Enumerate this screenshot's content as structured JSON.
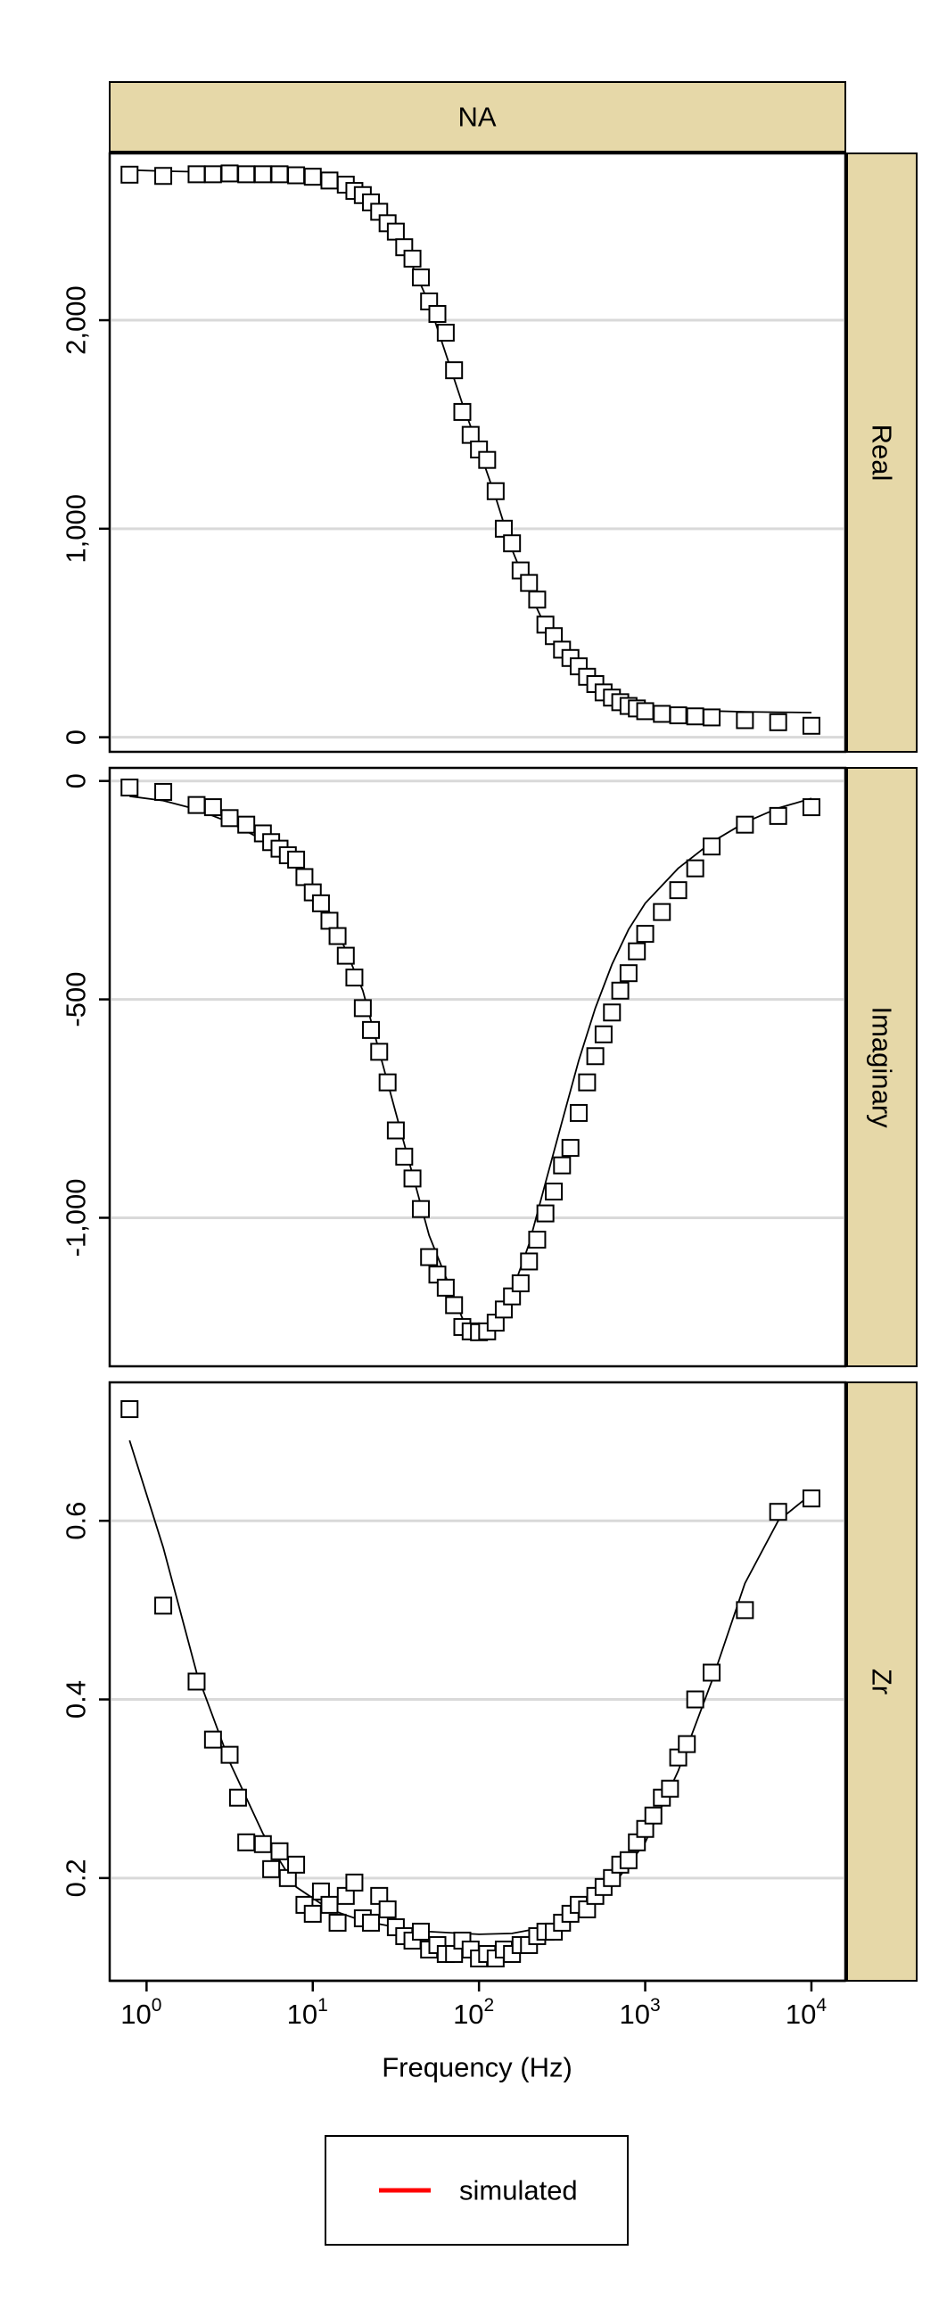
{
  "chart_data": {
    "type": "scatter",
    "column_label": "NA",
    "xlabel": "Frequency (Hz)",
    "x_scale": "log10",
    "xlim": [
      0.6,
      16000
    ],
    "x_ticks": [
      {
        "value": 1,
        "base": "10",
        "exp": "0"
      },
      {
        "value": 10,
        "base": "10",
        "exp": "1"
      },
      {
        "value": 100,
        "base": "10",
        "exp": "2"
      },
      {
        "value": 1000,
        "base": "10",
        "exp": "3"
      },
      {
        "value": 10000,
        "base": "10",
        "exp": "4"
      }
    ],
    "legend": {
      "position": "bottom",
      "entries": [
        {
          "label": "simulated",
          "color": "#ff0000"
        }
      ]
    },
    "panels": [
      {
        "label": "Real",
        "ylim": [
          -70,
          2800
        ],
        "y_ticks": [
          {
            "value": 0,
            "label": "0"
          },
          {
            "value": 1000,
            "label": "1,000"
          },
          {
            "value": 2000,
            "label": "2,000"
          }
        ],
        "points": [
          [
            0.79,
            2698
          ],
          [
            1.26,
            2692
          ],
          [
            2.0,
            2700
          ],
          [
            2.51,
            2700
          ],
          [
            3.16,
            2704
          ],
          [
            3.98,
            2700
          ],
          [
            5.01,
            2700
          ],
          [
            6.31,
            2700
          ],
          [
            7.94,
            2695
          ],
          [
            10.0,
            2688
          ],
          [
            12.6,
            2670
          ],
          [
            15.8,
            2650
          ],
          [
            17.8,
            2620
          ],
          [
            20.0,
            2600
          ],
          [
            22.4,
            2565
          ],
          [
            25.1,
            2520
          ],
          [
            28.2,
            2465
          ],
          [
            31.6,
            2425
          ],
          [
            35.5,
            2350
          ],
          [
            39.8,
            2295
          ],
          [
            44.7,
            2205
          ],
          [
            50.1,
            2090
          ],
          [
            56.2,
            2030
          ],
          [
            63.1,
            1940
          ],
          [
            70.8,
            1760
          ],
          [
            79.4,
            1560
          ],
          [
            89.1,
            1450
          ],
          [
            100,
            1380
          ],
          [
            112,
            1330
          ],
          [
            126,
            1180
          ],
          [
            141,
            1000
          ],
          [
            158,
            930
          ],
          [
            178,
            800
          ],
          [
            200,
            740
          ],
          [
            224,
            660
          ],
          [
            251,
            540
          ],
          [
            282,
            485
          ],
          [
            316,
            420
          ],
          [
            355,
            380
          ],
          [
            398,
            340
          ],
          [
            447,
            290
          ],
          [
            501,
            255
          ],
          [
            562,
            215
          ],
          [
            631,
            190
          ],
          [
            708,
            168
          ],
          [
            794,
            150
          ],
          [
            891,
            138
          ],
          [
            1000,
            125
          ],
          [
            1260,
            112
          ],
          [
            1580,
            105
          ],
          [
            2000,
            100
          ],
          [
            2510,
            95
          ],
          [
            3980,
            82
          ],
          [
            6310,
            72
          ],
          [
            10000,
            55
          ]
        ],
        "simulated": [
          [
            0.79,
            2720
          ],
          [
            1.26,
            2715
          ],
          [
            2.0,
            2712
          ],
          [
            3.16,
            2708
          ],
          [
            5.01,
            2704
          ],
          [
            7.94,
            2696
          ],
          [
            12.6,
            2675
          ],
          [
            20.0,
            2615
          ],
          [
            31.6,
            2440
          ],
          [
            50.1,
            2080
          ],
          [
            79.4,
            1600
          ],
          [
            100,
            1380
          ],
          [
            126,
            1150
          ],
          [
            158,
            900
          ],
          [
            200,
            700
          ],
          [
            251,
            530
          ],
          [
            316,
            400
          ],
          [
            398,
            305
          ],
          [
            501,
            240
          ],
          [
            631,
            195
          ],
          [
            794,
            165
          ],
          [
            1000,
            148
          ],
          [
            1580,
            132
          ],
          [
            2510,
            126
          ],
          [
            3980,
            122
          ],
          [
            6310,
            120
          ],
          [
            10000,
            118
          ]
        ]
      },
      {
        "label": "Imaginary",
        "ylim": [
          -1340,
          30
        ],
        "y_ticks": [
          {
            "value": 0,
            "label": "0"
          },
          {
            "value": -500,
            "label": "-500"
          },
          {
            "value": -1000,
            "label": "-1,000"
          }
        ],
        "points": [
          [
            0.79,
            -15
          ],
          [
            1.26,
            -25
          ],
          [
            2.0,
            -55
          ],
          [
            2.51,
            -60
          ],
          [
            3.16,
            -85
          ],
          [
            3.98,
            -100
          ],
          [
            5.01,
            -120
          ],
          [
            5.62,
            -140
          ],
          [
            6.31,
            -155
          ],
          [
            7.08,
            -170
          ],
          [
            7.94,
            -180
          ],
          [
            8.91,
            -220
          ],
          [
            10.0,
            -255
          ],
          [
            11.2,
            -280
          ],
          [
            12.6,
            -320
          ],
          [
            14.1,
            -355
          ],
          [
            15.8,
            -400
          ],
          [
            17.8,
            -450
          ],
          [
            20.0,
            -520
          ],
          [
            22.4,
            -570
          ],
          [
            25.1,
            -620
          ],
          [
            28.2,
            -690
          ],
          [
            31.6,
            -800
          ],
          [
            35.5,
            -860
          ],
          [
            39.8,
            -910
          ],
          [
            44.7,
            -980
          ],
          [
            50.1,
            -1090
          ],
          [
            56.2,
            -1130
          ],
          [
            63.1,
            -1160
          ],
          [
            70.8,
            -1200
          ],
          [
            79.4,
            -1250
          ],
          [
            89.1,
            -1260
          ],
          [
            100,
            -1262
          ],
          [
            112,
            -1260
          ],
          [
            126,
            -1240
          ],
          [
            141,
            -1210
          ],
          [
            158,
            -1180
          ],
          [
            178,
            -1150
          ],
          [
            200,
            -1100
          ],
          [
            224,
            -1050
          ],
          [
            251,
            -990
          ],
          [
            282,
            -940
          ],
          [
            316,
            -880
          ],
          [
            355,
            -840
          ],
          [
            398,
            -760
          ],
          [
            447,
            -690
          ],
          [
            501,
            -630
          ],
          [
            562,
            -580
          ],
          [
            631,
            -530
          ],
          [
            708,
            -480
          ],
          [
            794,
            -440
          ],
          [
            891,
            -390
          ],
          [
            1000,
            -350
          ],
          [
            1260,
            -300
          ],
          [
            1580,
            -250
          ],
          [
            2000,
            -200
          ],
          [
            2510,
            -150
          ],
          [
            3980,
            -100
          ],
          [
            6310,
            -80
          ],
          [
            10000,
            -60
          ]
        ],
        "simulated": [
          [
            0.79,
            -35
          ],
          [
            1.26,
            -45
          ],
          [
            2.0,
            -65
          ],
          [
            3.16,
            -95
          ],
          [
            5.01,
            -135
          ],
          [
            7.94,
            -195
          ],
          [
            12.6,
            -300
          ],
          [
            20.0,
            -480
          ],
          [
            31.6,
            -760
          ],
          [
            50.1,
            -1040
          ],
          [
            79.4,
            -1230
          ],
          [
            100,
            -1262
          ],
          [
            126,
            -1240
          ],
          [
            158,
            -1170
          ],
          [
            200,
            -1060
          ],
          [
            251,
            -920
          ],
          [
            316,
            -780
          ],
          [
            398,
            -640
          ],
          [
            501,
            -520
          ],
          [
            631,
            -420
          ],
          [
            794,
            -340
          ],
          [
            1000,
            -280
          ],
          [
            1580,
            -200
          ],
          [
            2510,
            -140
          ],
          [
            3980,
            -95
          ],
          [
            6310,
            -62
          ],
          [
            10000,
            -40
          ]
        ]
      },
      {
        "label": "Zr",
        "ylim": [
          0.085,
          0.755
        ],
        "y_ticks": [
          {
            "value": 0.2,
            "label": "0.2"
          },
          {
            "value": 0.4,
            "label": "0.4"
          },
          {
            "value": 0.6,
            "label": "0.6"
          }
        ],
        "points": [
          [
            0.79,
            0.725
          ],
          [
            1.26,
            0.505
          ],
          [
            2.0,
            0.42
          ],
          [
            2.51,
            0.355
          ],
          [
            3.16,
            0.338
          ],
          [
            3.55,
            0.29
          ],
          [
            3.98,
            0.24
          ],
          [
            5.01,
            0.238
          ],
          [
            5.62,
            0.21
          ],
          [
            6.31,
            0.23
          ],
          [
            7.08,
            0.2
          ],
          [
            7.94,
            0.215
          ],
          [
            8.91,
            0.17
          ],
          [
            10.0,
            0.16
          ],
          [
            11.2,
            0.185
          ],
          [
            12.6,
            0.17
          ],
          [
            14.1,
            0.15
          ],
          [
            15.8,
            0.18
          ],
          [
            17.8,
            0.195
          ],
          [
            20.0,
            0.155
          ],
          [
            22.4,
            0.15
          ],
          [
            25.1,
            0.18
          ],
          [
            28.2,
            0.165
          ],
          [
            31.6,
            0.145
          ],
          [
            35.5,
            0.135
          ],
          [
            39.8,
            0.13
          ],
          [
            44.7,
            0.14
          ],
          [
            50.1,
            0.12
          ],
          [
            56.2,
            0.125
          ],
          [
            63.1,
            0.115
          ],
          [
            70.8,
            0.115
          ],
          [
            79.4,
            0.13
          ],
          [
            89.1,
            0.12
          ],
          [
            100,
            0.11
          ],
          [
            112,
            0.115
          ],
          [
            126,
            0.11
          ],
          [
            141,
            0.12
          ],
          [
            158,
            0.115
          ],
          [
            178,
            0.125
          ],
          [
            200,
            0.125
          ],
          [
            224,
            0.135
          ],
          [
            251,
            0.14
          ],
          [
            282,
            0.14
          ],
          [
            316,
            0.15
          ],
          [
            355,
            0.16
          ],
          [
            398,
            0.17
          ],
          [
            447,
            0.165
          ],
          [
            501,
            0.18
          ],
          [
            562,
            0.19
          ],
          [
            631,
            0.2
          ],
          [
            708,
            0.215
          ],
          [
            794,
            0.22
          ],
          [
            891,
            0.24
          ],
          [
            1000,
            0.255
          ],
          [
            1120,
            0.27
          ],
          [
            1260,
            0.29
          ],
          [
            1410,
            0.3
          ],
          [
            1580,
            0.335
          ],
          [
            1780,
            0.35
          ],
          [
            2000,
            0.4
          ],
          [
            2510,
            0.43
          ],
          [
            3980,
            0.5
          ],
          [
            6310,
            0.61
          ],
          [
            10000,
            0.625
          ]
        ],
        "simulated": [
          [
            0.79,
            0.69
          ],
          [
            1.26,
            0.57
          ],
          [
            2.0,
            0.43
          ],
          [
            3.16,
            0.33
          ],
          [
            5.01,
            0.25
          ],
          [
            7.94,
            0.19
          ],
          [
            12.6,
            0.165
          ],
          [
            20.0,
            0.152
          ],
          [
            31.6,
            0.145
          ],
          [
            50.1,
            0.14
          ],
          [
            79.4,
            0.138
          ],
          [
            100,
            0.137
          ],
          [
            158,
            0.138
          ],
          [
            251,
            0.145
          ],
          [
            398,
            0.16
          ],
          [
            631,
            0.19
          ],
          [
            1000,
            0.24
          ],
          [
            1580,
            0.32
          ],
          [
            2510,
            0.42
          ],
          [
            3980,
            0.53
          ],
          [
            6310,
            0.6
          ],
          [
            10000,
            0.63
          ]
        ]
      }
    ]
  }
}
